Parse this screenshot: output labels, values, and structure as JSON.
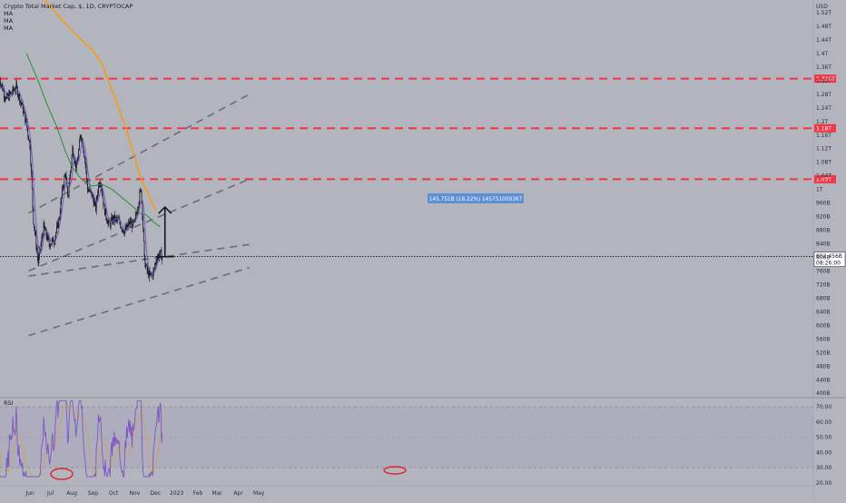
{
  "header": {
    "title": "Crypto Total Market Cap, $, 1D, CRYPTOCAP",
    "indicators": [
      "MA",
      "MA",
      "MA"
    ]
  },
  "chart_data": {
    "type": "candlestick",
    "currency_label": "USD",
    "price_axis": {
      "ticks": [
        "1.52T",
        "1.48T",
        "1.44T",
        "1.4T",
        "1.36T",
        "1.32T",
        "1.28T",
        "1.24T",
        "1.2T",
        "1.16T",
        "1.12T",
        "1.08T",
        "1.04T",
        "1T",
        "960B",
        "920B",
        "880B",
        "840B",
        "800B",
        "760B",
        "720B",
        "680B",
        "640B",
        "600B",
        "560B",
        "520B",
        "480B",
        "440B",
        "400B"
      ],
      "tick_values": [
        1520,
        1480,
        1440,
        1400,
        1360,
        1320,
        1280,
        1240,
        1200,
        1160,
        1120,
        1080,
        1040,
        1000,
        960,
        920,
        880,
        840,
        800,
        760,
        720,
        680,
        640,
        600,
        560,
        520,
        480,
        440,
        400
      ],
      "unit": "B"
    },
    "time_axis": {
      "labels": [
        "Jun",
        "Jul",
        "Aug",
        "Sep",
        "Oct",
        "Nov",
        "Dec",
        "2023",
        "Feb",
        "Mar",
        "Apr",
        "May"
      ]
    },
    "horizontal_levels": [
      {
        "label": "1.326T",
        "value": 1326,
        "color": "#f23645"
      },
      {
        "label": "1.18T",
        "value": 1180,
        "color": "#f23645"
      },
      {
        "label": "1.03T",
        "value": 1030,
        "color": "#f23645"
      }
    ],
    "last_price": {
      "label": "802.456B",
      "countdown": "08:26:00",
      "value": 802.456
    },
    "measure": {
      "label": "145.751B (18.22%) 145751009367",
      "from": 802,
      "to": 948
    },
    "rsi": {
      "title": "RSI",
      "ticks": [
        "70.00",
        "60.00",
        "50.00",
        "40.00",
        "30.00",
        "20.00"
      ],
      "tick_values": [
        70,
        60,
        50,
        40,
        30,
        20
      ],
      "band": [
        30,
        70
      ]
    },
    "series_colors": {
      "ma_fast": "#7e57c2",
      "ma_mid": "#2e8b3a",
      "ma_slow": "#ff9800",
      "rsi": "#7e57c2",
      "rsi_ma": "#c9a46a",
      "level": "#f23645",
      "trend": "#6a6d78"
    }
  }
}
